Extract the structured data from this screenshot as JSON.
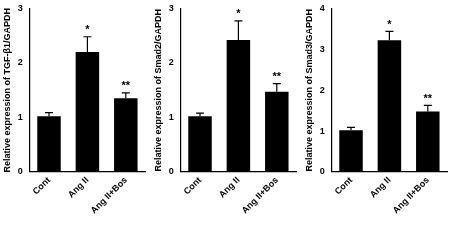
{
  "chart_data": [
    {
      "type": "bar",
      "y_label": "Relative expression of TGF-β1/GAPDH",
      "categories": [
        "Cont",
        "Ang II",
        "Ang II+Bos"
      ],
      "values": [
        1.02,
        2.2,
        1.35
      ],
      "errors": [
        0.07,
        0.28,
        0.1
      ],
      "significance": [
        null,
        "*",
        "**"
      ],
      "color": "#000000",
      "ylim": [
        0,
        3
      ],
      "yticks": [
        0,
        1,
        2,
        3
      ],
      "grid": false
    },
    {
      "type": "bar",
      "y_label": "Relative expression of Smad2/GAPDH",
      "categories": [
        "Cont",
        "Ang II",
        "Ang II+Bos"
      ],
      "values": [
        1.02,
        2.42,
        1.47
      ],
      "errors": [
        0.06,
        0.35,
        0.15
      ],
      "significance": [
        null,
        "*",
        "**"
      ],
      "color": "#000000",
      "ylim": [
        0,
        3
      ],
      "yticks": [
        0,
        1,
        2,
        3
      ],
      "grid": false
    },
    {
      "type": "bar",
      "y_label": "Relative expression of Smad3/GAPDH",
      "categories": [
        "Cont",
        "Ang II",
        "Ang II+Bos"
      ],
      "values": [
        1.02,
        3.22,
        1.48
      ],
      "errors": [
        0.07,
        0.22,
        0.15
      ],
      "significance": [
        null,
        "*",
        "**"
      ],
      "color": "#000000",
      "ylim": [
        0,
        4
      ],
      "yticks": [
        0,
        1,
        2,
        3,
        4
      ],
      "grid": false
    }
  ]
}
